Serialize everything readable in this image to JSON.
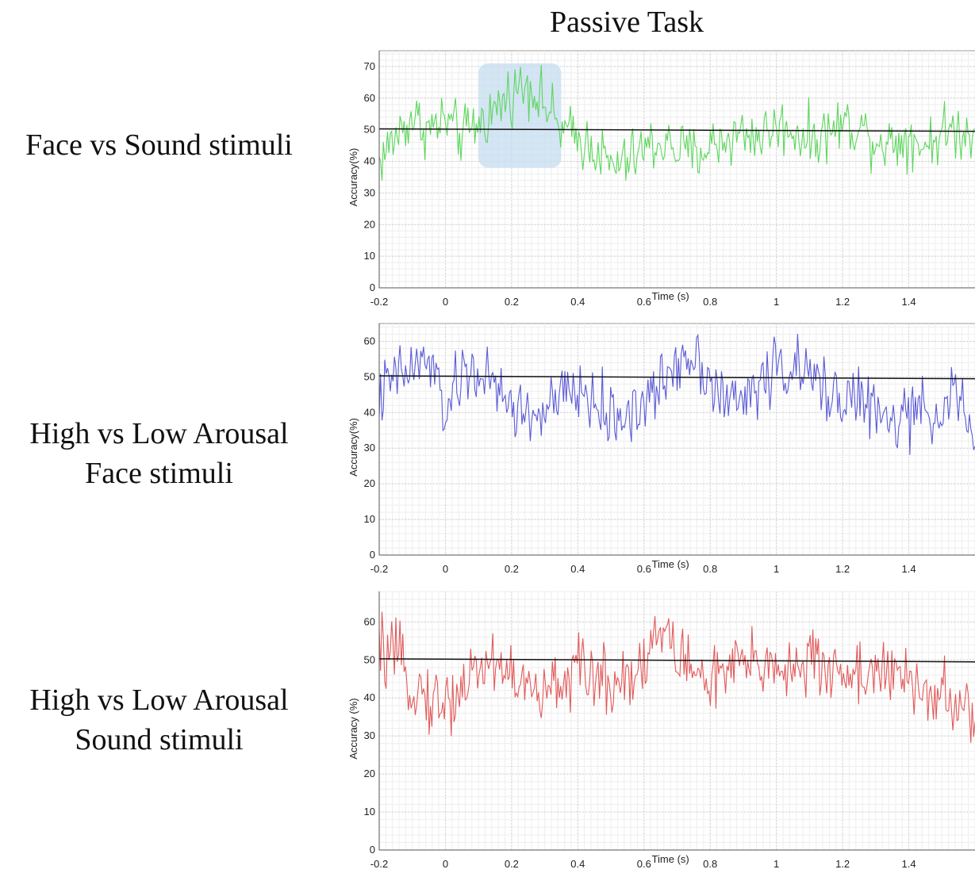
{
  "figure": {
    "title": "Passive Task"
  },
  "rows": [
    {
      "label_lines": [
        "Face vs Sound stimuli"
      ]
    },
    {
      "label_lines": [
        "High vs Low Arousal",
        "Face stimuli"
      ]
    },
    {
      "label_lines": [
        "High vs Low Arousal",
        "Sound stimuli"
      ]
    }
  ],
  "chart_data": [
    {
      "type": "line",
      "xlabel": "Time (s)",
      "ylabel": "Accuracy(%)",
      "xlim": [
        -0.2,
        1.6
      ],
      "ylim": [
        0,
        75
      ],
      "xticks": [
        -0.2,
        0,
        0.2,
        0.4,
        0.6,
        0.8,
        1,
        1.2,
        1.4
      ],
      "xtick_labels": [
        "-0.2",
        "0",
        "0.2",
        "0.4",
        "0.6",
        "0.8",
        "1",
        "1.2",
        "1.4"
      ],
      "yticks": [
        0,
        10,
        20,
        30,
        40,
        50,
        60,
        70
      ],
      "ytick_labels": [
        "0",
        "10",
        "20",
        "30",
        "40",
        "50",
        "60",
        "70"
      ],
      "grid": true,
      "chance_level": 50,
      "series_color": "#5dd65d",
      "highlight": {
        "x": [
          0.1,
          0.35
        ],
        "y": [
          38,
          71
        ],
        "color": "#c6dcf0"
      },
      "series": [
        {
          "x": [
            -0.2,
            -0.15,
            -0.1,
            -0.05,
            0,
            0.05,
            0.1,
            0.15,
            0.2,
            0.25,
            0.3,
            0.35,
            0.4,
            0.45,
            0.5,
            0.55,
            0.6,
            0.65,
            0.7,
            0.75,
            0.8,
            0.85,
            0.9,
            0.95,
            1,
            1.05,
            1.1,
            1.15,
            1.2,
            1.25,
            1.3,
            1.35,
            1.4,
            1.45,
            1.5,
            1.55,
            1.6
          ],
          "values": [
            40,
            48,
            54,
            50,
            53,
            48,
            52,
            56,
            62,
            65,
            58,
            50,
            47,
            45,
            38,
            40,
            44,
            46,
            44,
            42,
            45,
            47,
            49,
            48,
            51,
            50,
            47,
            49,
            52,
            51,
            47,
            46,
            48,
            45,
            49,
            50,
            47
          ]
        }
      ]
    },
    {
      "type": "line",
      "xlabel": "Time (s)",
      "ylabel": "Accuracy(%)",
      "xlim": [
        -0.2,
        1.6
      ],
      "ylim": [
        0,
        65
      ],
      "xticks": [
        -0.2,
        0,
        0.2,
        0.4,
        0.6,
        0.8,
        1,
        1.2,
        1.4
      ],
      "xtick_labels": [
        "-0.2",
        "0",
        "0.2",
        "0.4",
        "0.6",
        "0.8",
        "1",
        "1.2",
        "1.4"
      ],
      "yticks": [
        0,
        10,
        20,
        30,
        40,
        50,
        60
      ],
      "ytick_labels": [
        "0",
        "10",
        "20",
        "30",
        "40",
        "50",
        "60"
      ],
      "grid": true,
      "chance_level": 50,
      "series_color": "#5b5bd6",
      "series": [
        {
          "x": [
            -0.2,
            -0.15,
            -0.1,
            -0.05,
            0,
            0.05,
            0.1,
            0.15,
            0.2,
            0.25,
            0.3,
            0.35,
            0.4,
            0.45,
            0.5,
            0.55,
            0.6,
            0.65,
            0.7,
            0.75,
            0.8,
            0.85,
            0.9,
            0.95,
            1,
            1.05,
            1.1,
            1.15,
            1.2,
            1.25,
            1.3,
            1.35,
            1.4,
            1.45,
            1.5,
            1.55,
            1.6
          ],
          "values": [
            44,
            50,
            52,
            55,
            40,
            50,
            52,
            46,
            42,
            39,
            40,
            44,
            46,
            43,
            38,
            40,
            42,
            47,
            55,
            57,
            50,
            42,
            44,
            48,
            53,
            52,
            50,
            46,
            45,
            44,
            40,
            36,
            40,
            39,
            42,
            45,
            30
          ]
        }
      ]
    },
    {
      "type": "line",
      "xlabel": "Time (s)",
      "ylabel": "Accuracy (%)",
      "xlim": [
        -0.2,
        1.6
      ],
      "ylim": [
        0,
        68
      ],
      "xticks": [
        -0.2,
        0,
        0.2,
        0.4,
        0.6,
        0.8,
        1,
        1.2,
        1.4
      ],
      "xtick_labels": [
        "-0.2",
        "0",
        "0.2",
        "0.4",
        "0.6",
        "0.8",
        "1",
        "1.2",
        "1.4"
      ],
      "yticks": [
        0,
        10,
        20,
        30,
        40,
        50,
        60
      ],
      "ytick_labels": [
        "0",
        "10",
        "20",
        "30",
        "40",
        "50",
        "60"
      ],
      "grid": true,
      "chance_level": 50,
      "series_color": "#e25a5a",
      "series": [
        {
          "x": [
            -0.2,
            -0.15,
            -0.1,
            -0.05,
            0,
            0.05,
            0.1,
            0.15,
            0.2,
            0.25,
            0.3,
            0.35,
            0.4,
            0.45,
            0.5,
            0.55,
            0.6,
            0.65,
            0.7,
            0.75,
            0.8,
            0.85,
            0.9,
            0.95,
            1,
            1.05,
            1.1,
            1.15,
            1.2,
            1.25,
            1.3,
            1.35,
            1.4,
            1.45,
            1.5,
            1.55,
            1.6
          ],
          "values": [
            52,
            50,
            44,
            40,
            38,
            43,
            48,
            50,
            46,
            42,
            40,
            45,
            47,
            46,
            44,
            46,
            50,
            58,
            52,
            47,
            45,
            46,
            49,
            48,
            50,
            47,
            49,
            48,
            47,
            46,
            48,
            45,
            44,
            42,
            40,
            37,
            36
          ]
        }
      ]
    }
  ]
}
